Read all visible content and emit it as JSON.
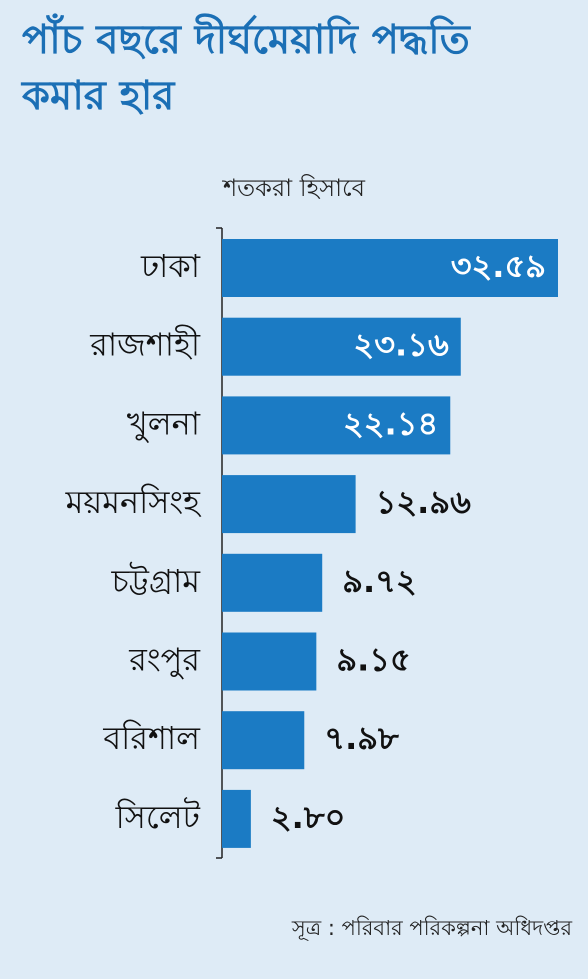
{
  "chart_data": {
    "type": "bar",
    "orientation": "horizontal",
    "title": "পাঁচ বছরে দীর্ঘমেয়াদি পদ্ধতি কমার হার",
    "subtitle": "শতকরা হিসাবে",
    "categories": [
      "ঢাকা",
      "রাজশাহী",
      "খুলনা",
      "ময়মনসিংহ",
      "চট্টগ্রাম",
      "রংপুর",
      "বরিশাল",
      "সিলেট"
    ],
    "values": [
      32.59,
      23.16,
      22.14,
      12.96,
      9.72,
      9.15,
      7.98,
      2.8
    ],
    "value_labels": [
      "৩২.৫৯",
      "২৩.১৬",
      "২২.১৪",
      "১২.৯৬",
      "৯.৭২",
      "৯.১৫",
      "৭.৯৮",
      "২.৮০"
    ],
    "color": "#1b7bc4",
    "source": "সূত্র : পরিবার পরিকল্পনা অধিদপ্তর"
  }
}
